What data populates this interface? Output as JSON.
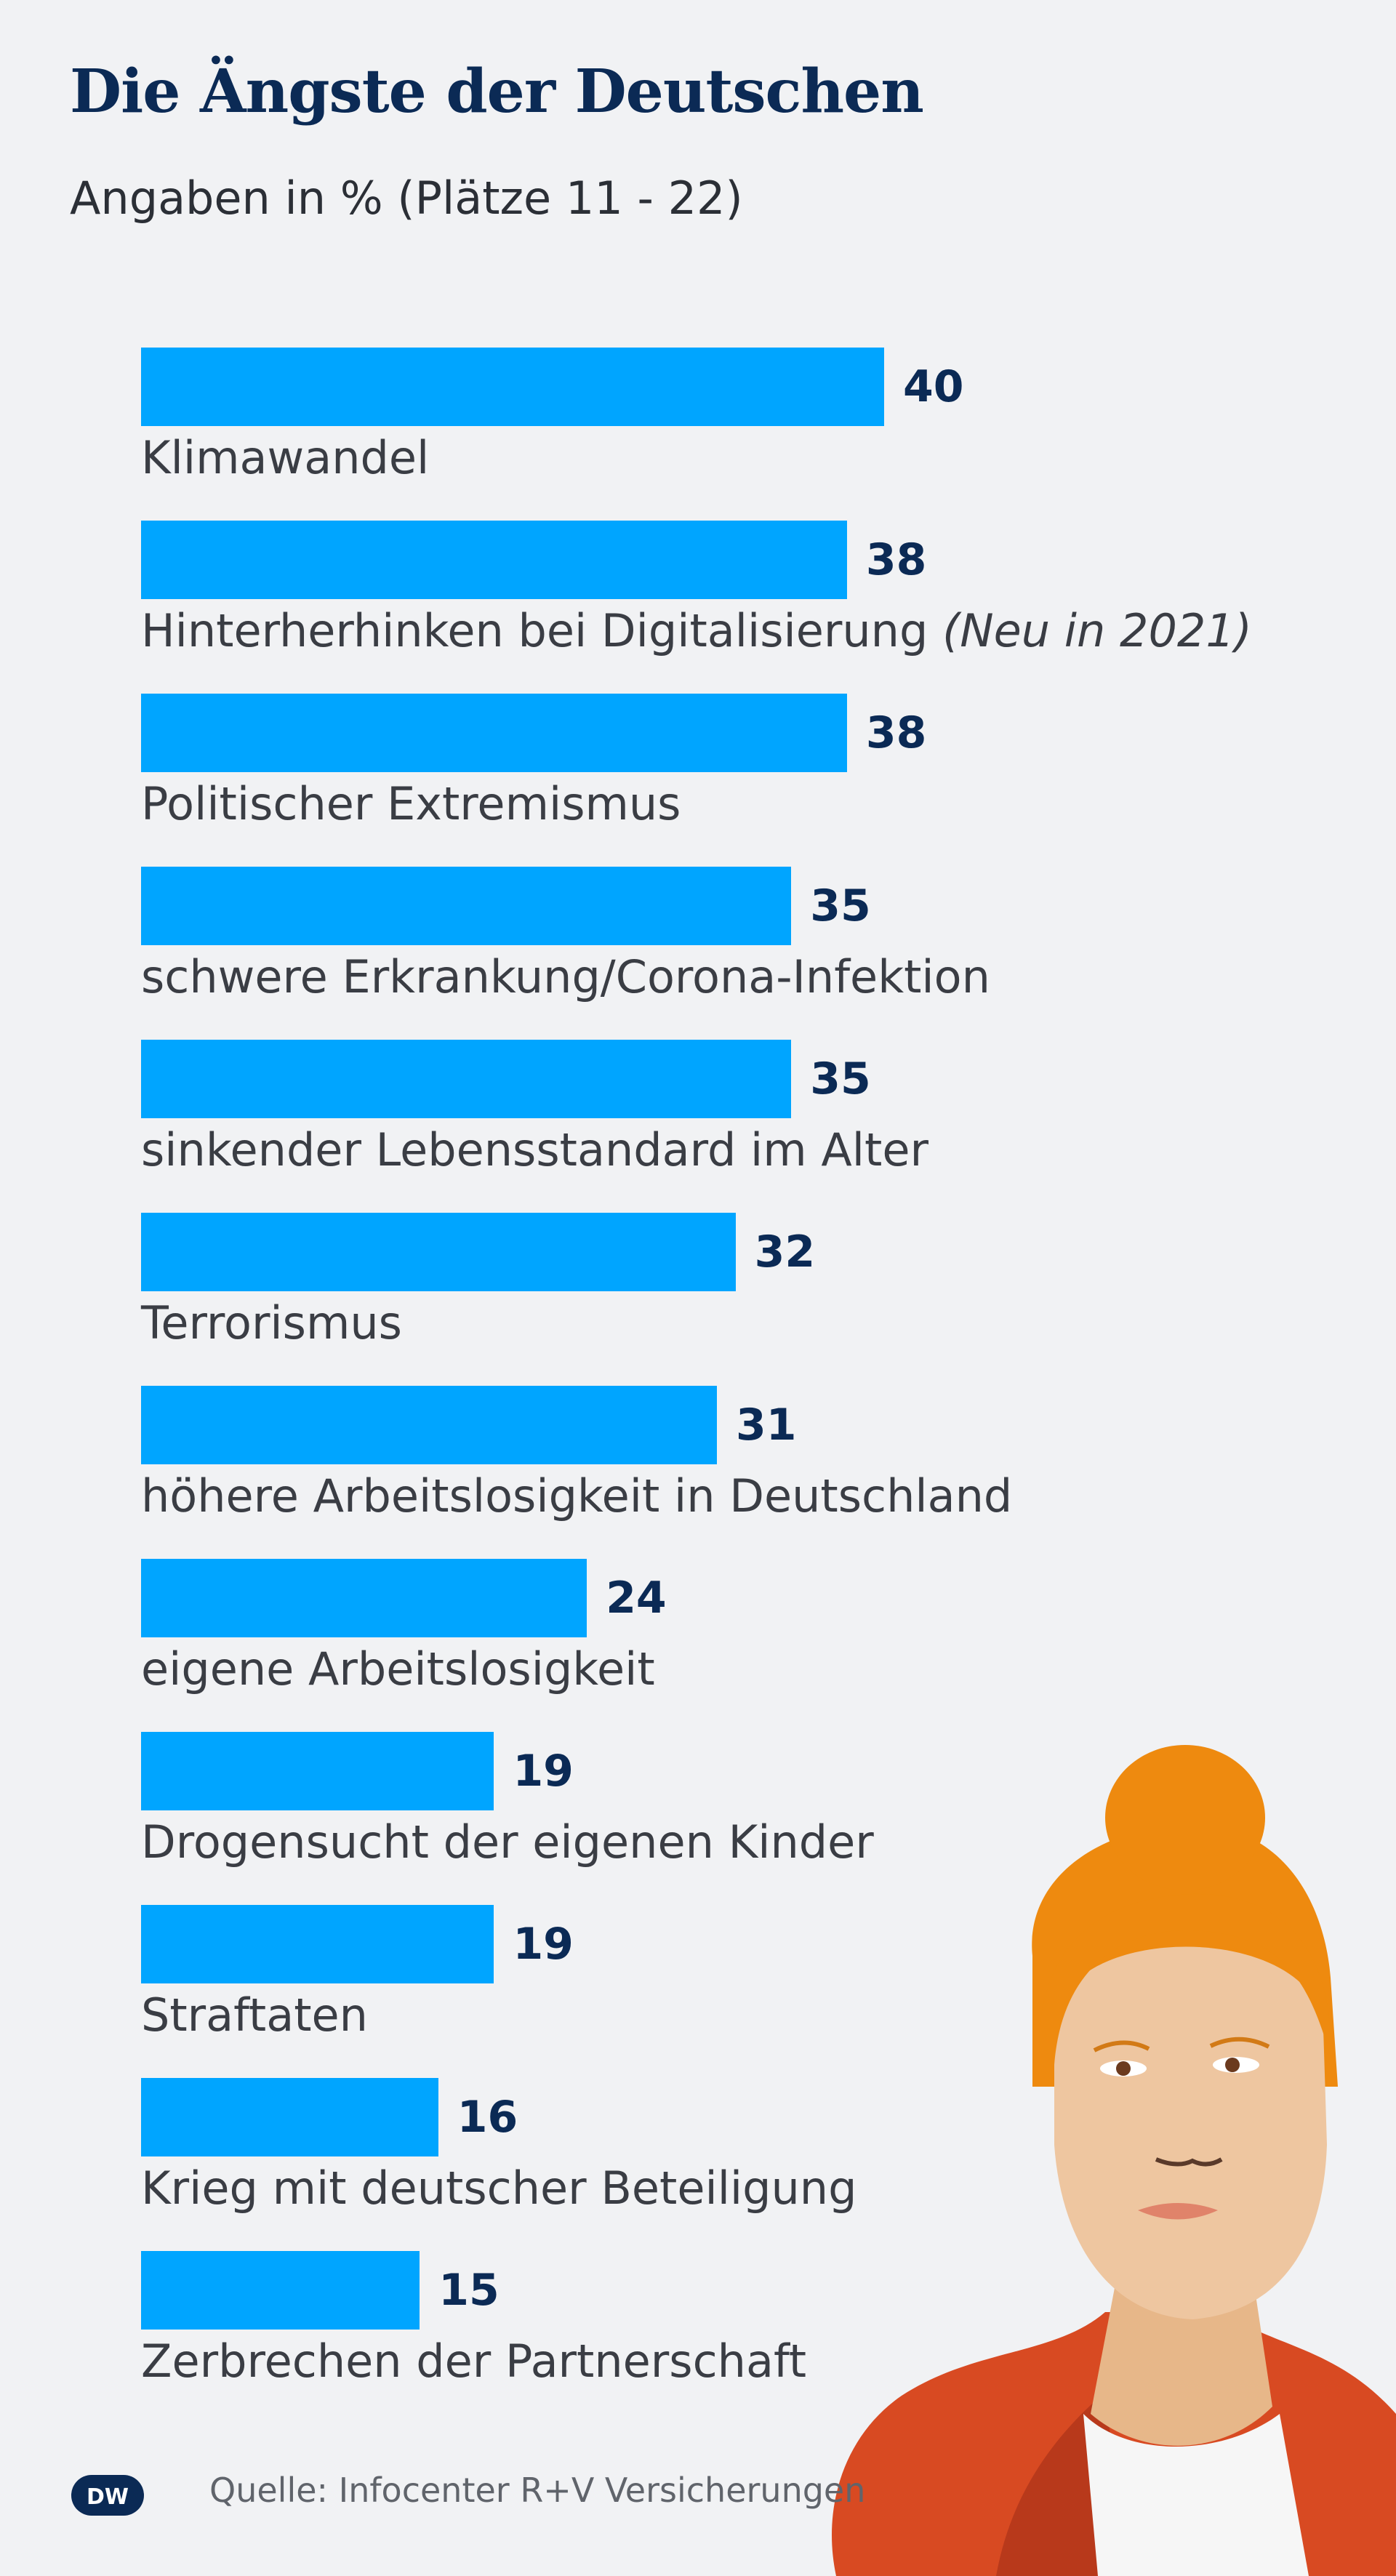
{
  "header": {
    "title": "Die Ängste der Deutschen",
    "subtitle": "Angaben in % (Plätze 11 - 22)"
  },
  "footer": {
    "logo_text": "DW",
    "source": "Quelle: Infocenter R+V Versicherungen"
  },
  "colors": {
    "bar": "#00a5ff",
    "value_text": "#0b2a55",
    "hair": "#ee8a0f",
    "skin": "#eec6a0",
    "jacket": "#d84a22"
  },
  "chart_data": {
    "type": "bar",
    "orientation": "horizontal",
    "title": "Die Ängste der Deutschen",
    "subtitle": "Angaben in % (Plätze 11 - 22)",
    "unit": "%",
    "xlim": [
      0,
      40
    ],
    "categories": [
      "Klimawandel",
      "Hinterherhinken bei Digitalisierung",
      "Politischer Extremismus",
      "schwere Erkrankung/Corona-Infektion",
      "sinkender Lebensstandard im Alter",
      "Terrorismus",
      "höhere Arbeitslosigkeit in Deutschland",
      "eigene Arbeitslosigkeit",
      "Drogensucht der eigenen Kinder",
      "Straftaten",
      "Krieg mit deutscher Beteiligung",
      "Zerbrechen der Partnerschaft"
    ],
    "notes": [
      "",
      "(Neu in 2021)",
      "",
      "",
      "",
      "",
      "",
      "",
      "",
      "",
      "",
      ""
    ],
    "values": [
      40,
      38,
      38,
      35,
      35,
      32,
      31,
      24,
      19,
      19,
      16,
      15
    ]
  }
}
